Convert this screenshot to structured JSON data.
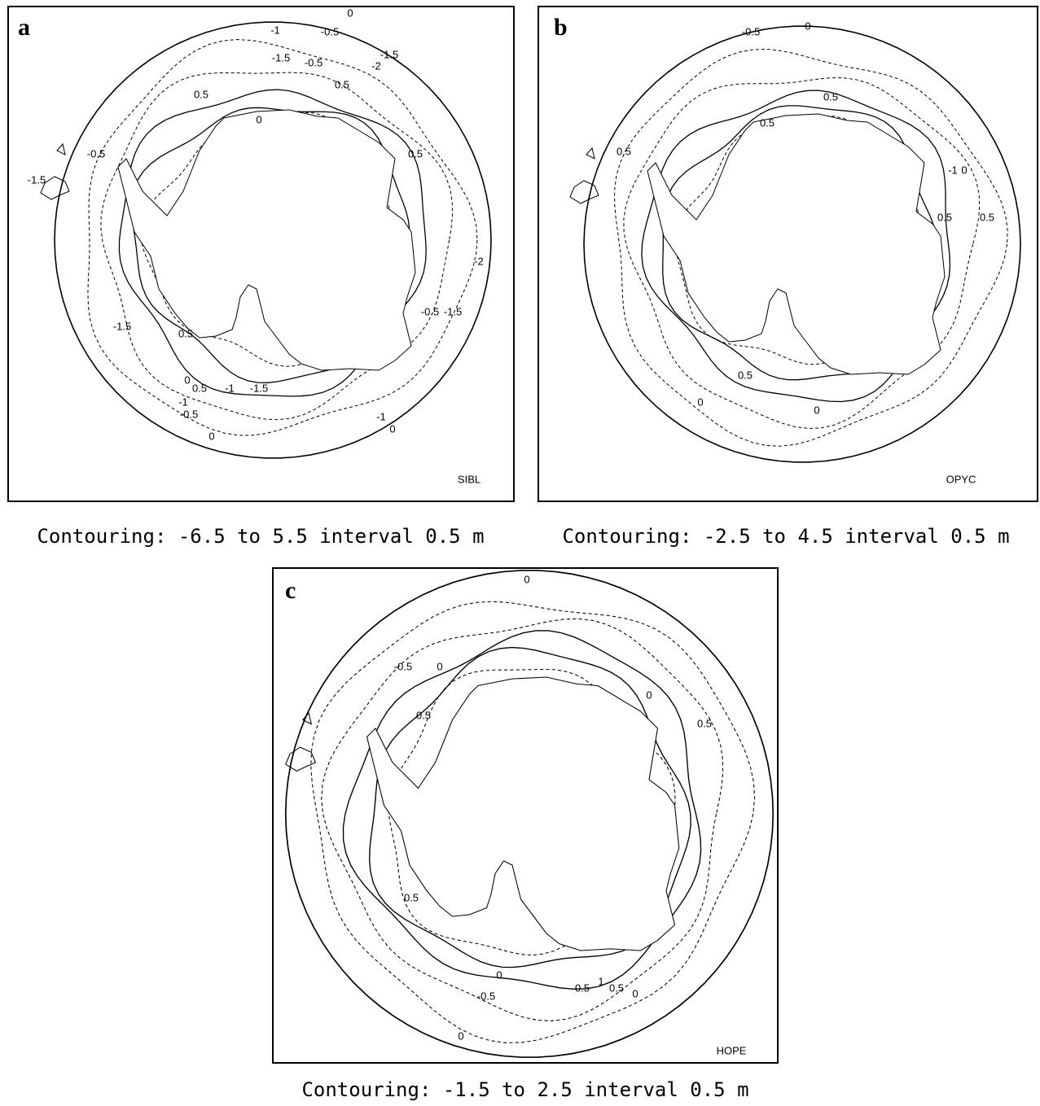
{
  "panels": [
    {
      "letter": "a",
      "model": "SIBL",
      "caption": "Contouring: -6.5 to 5.5 interval 0.5 m",
      "contour_labels": [
        "0",
        "-1",
        "-0.5",
        "-1.5",
        "-0.5",
        "-1.5",
        "-2",
        "0.5",
        "0.5",
        "0",
        "-0.5",
        "0.5",
        "-1.5",
        "-2",
        "-0.5",
        "-1.5",
        "0.5",
        "-1.5",
        "0",
        "0.5",
        "-1",
        "-1.5",
        "-1",
        "-0.5",
        "-1",
        "0",
        "0"
      ]
    },
    {
      "letter": "b",
      "model": "OPYC",
      "caption": "Contouring: -2.5 to 4.5 interval 0.5 m",
      "contour_labels": [
        "-0.5",
        "0",
        "0.5",
        "0.5",
        "0.5",
        "-1",
        "0",
        "0.5",
        "0.5",
        "0.5",
        "0",
        "0"
      ]
    },
    {
      "letter": "c",
      "model": "HOPE",
      "caption": "Contouring: -1.5 to 2.5 interval 0.5 m",
      "contour_labels": [
        "0",
        "-0.5",
        "0",
        "0",
        "0.5",
        "0.5",
        "0.5",
        "0",
        "0.5",
        "1",
        "0.5",
        "0",
        "-0.5",
        "0"
      ]
    }
  ]
}
